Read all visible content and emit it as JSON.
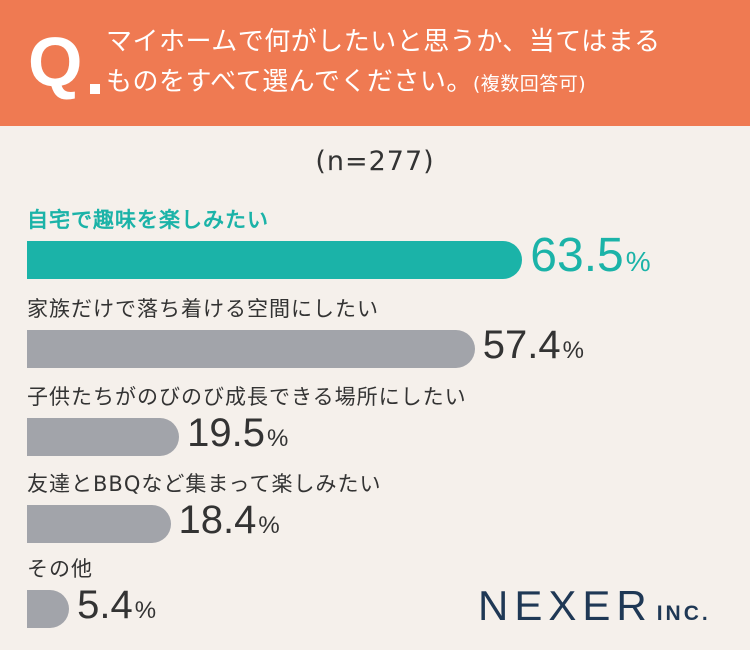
{
  "header": {
    "q_mark": "Q",
    "question_line1": "マイホームで何がしたいと思うか、当てはまる",
    "question_line2": "ものをすべて選んでください。",
    "question_note": "(複数回答可)"
  },
  "sample": "(n=277)",
  "chart_data": {
    "type": "bar",
    "orientation": "horizontal",
    "categories": [
      "自宅で趣味を楽しみたい",
      "家族だけで落ち着ける空間にしたい",
      "子供たちがのびのび成長できる場所にしたい",
      "友達とBBQなど集まって楽しみたい",
      "その他"
    ],
    "values": [
      63.5,
      57.4,
      19.5,
      18.4,
      5.4
    ],
    "value_labels": [
      "63.5",
      "57.4",
      "19.5",
      "18.4",
      "5.4"
    ],
    "unit": "%",
    "highlight_index": 0,
    "xlim": [
      0,
      100
    ],
    "colors": {
      "highlight": "#1bb3a8",
      "default": "#a2a4aa"
    }
  },
  "logo": {
    "main": "NEXER",
    "suffix": "INC."
  },
  "colors": {
    "header_bg": "#ef7a52",
    "page_bg": "#f5f0eb",
    "logo": "#1f3855"
  }
}
